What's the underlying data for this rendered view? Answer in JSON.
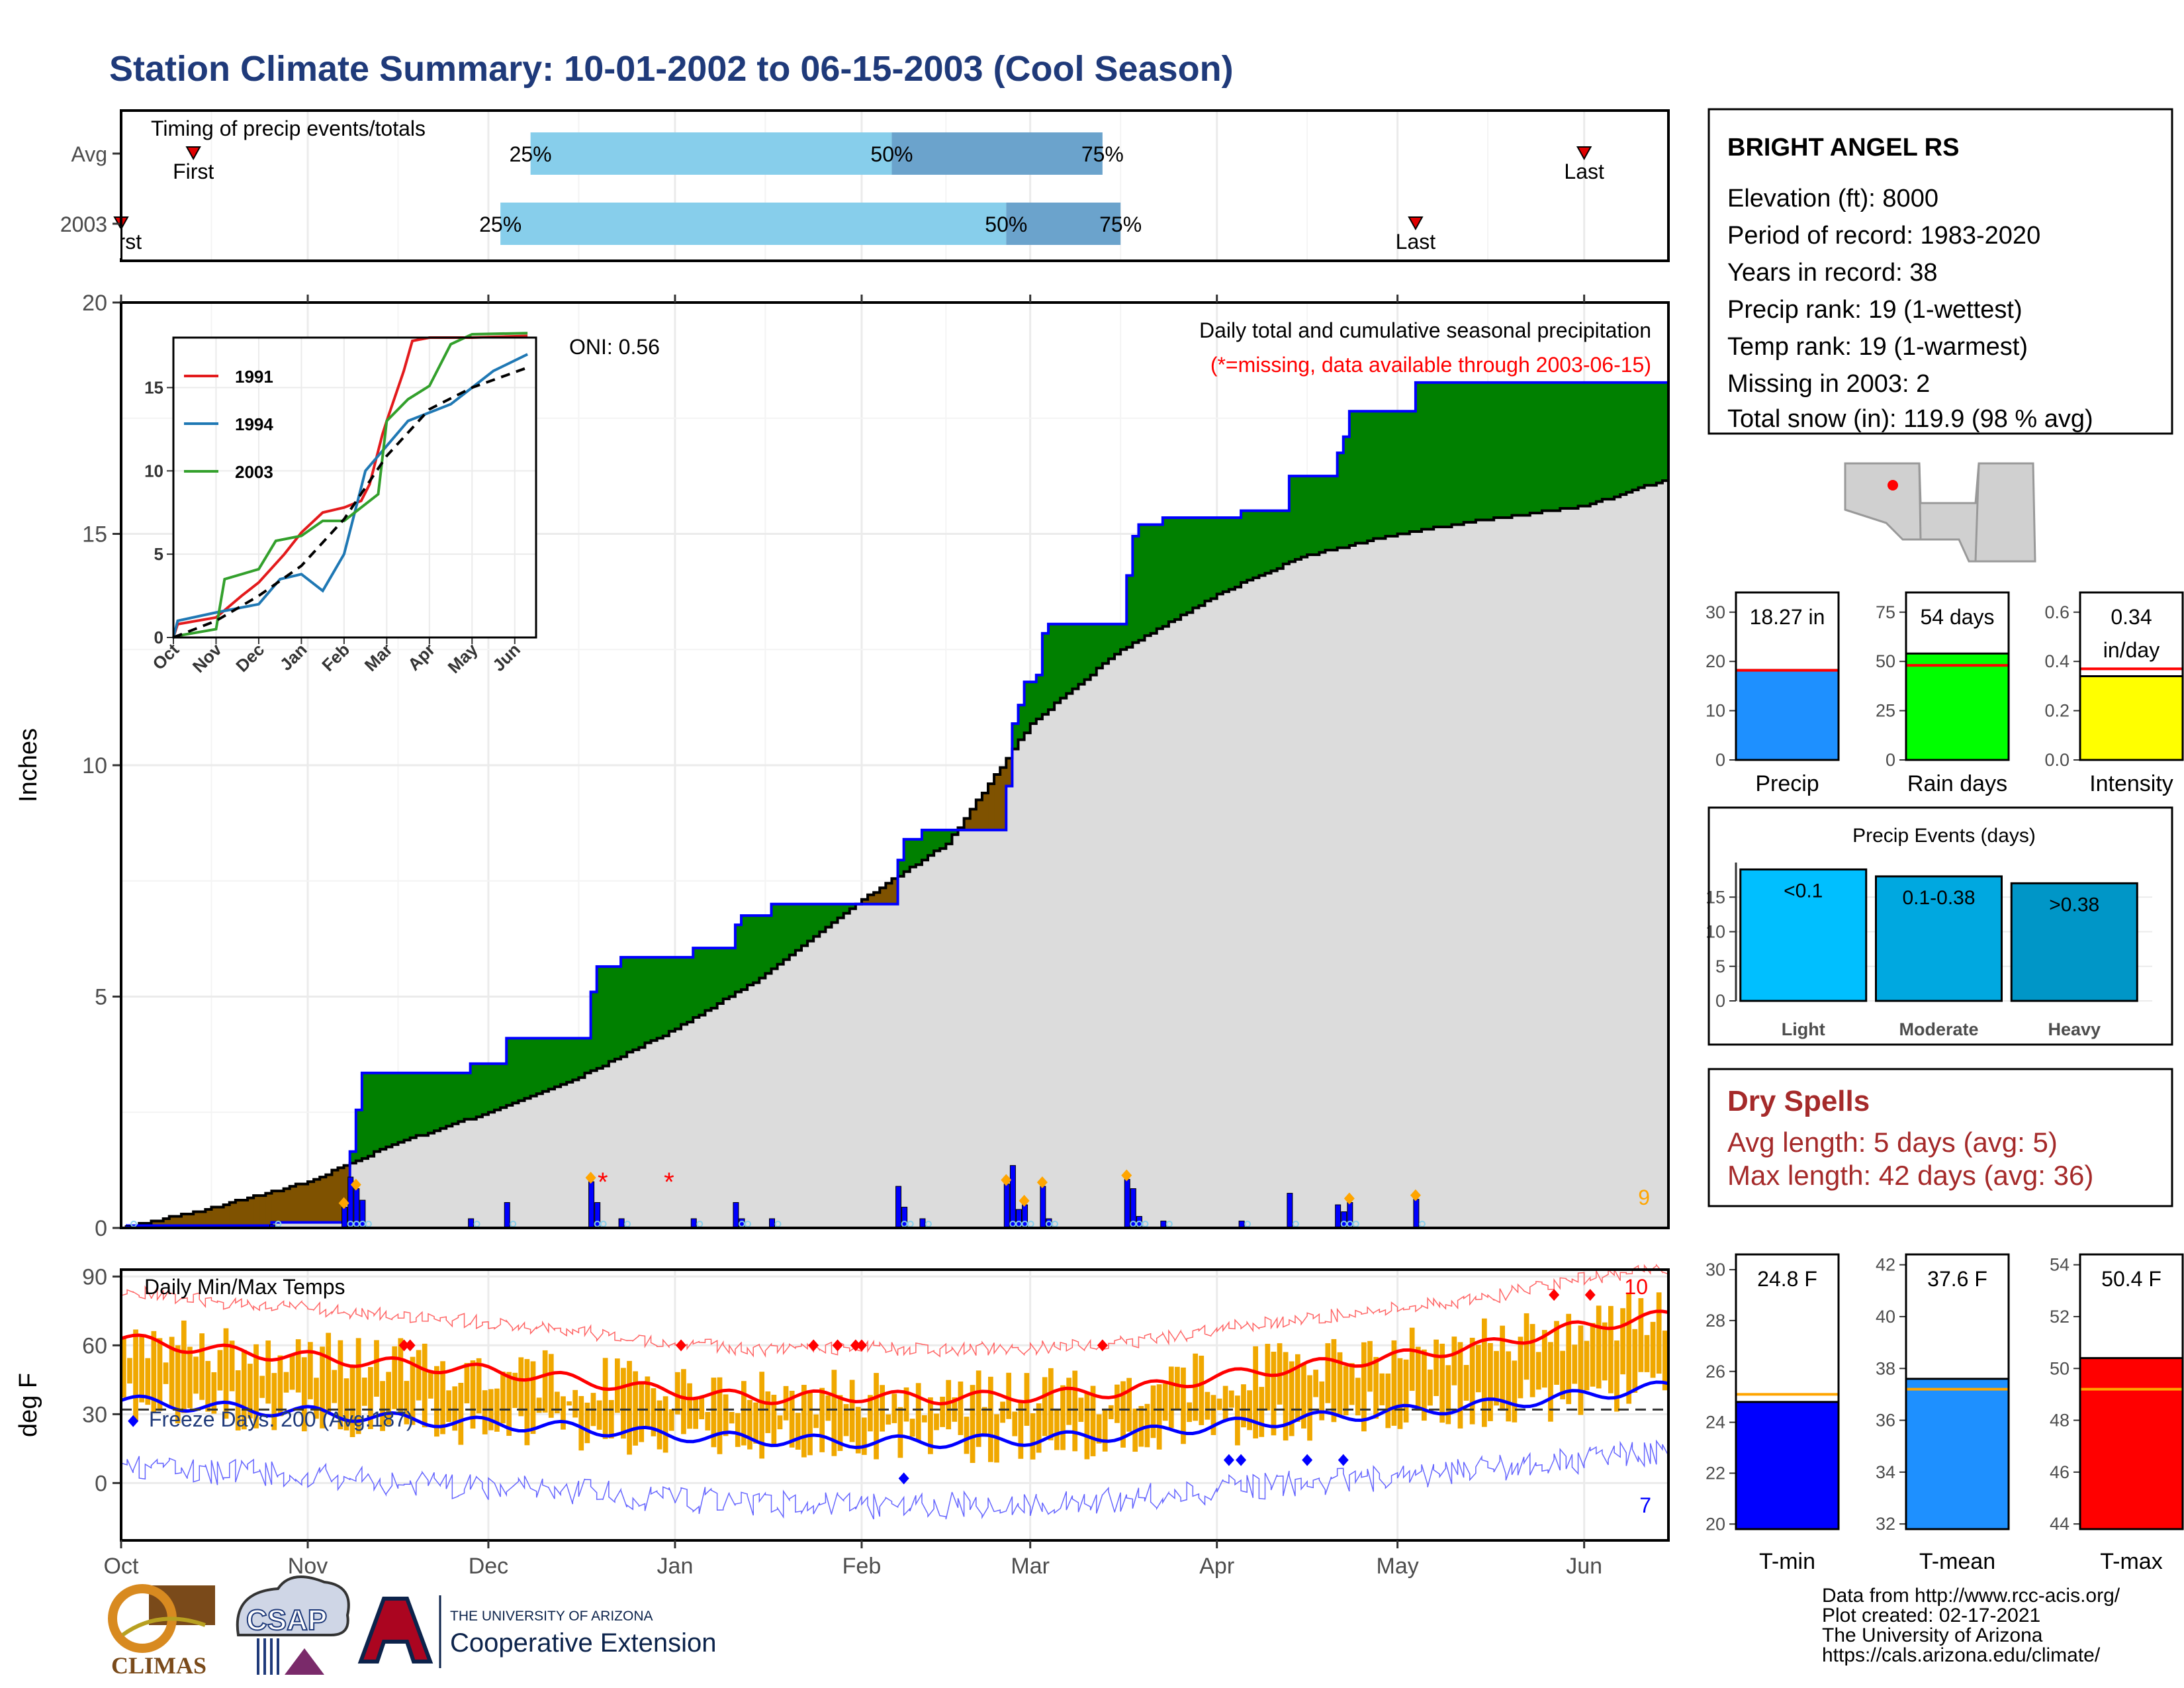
{
  "title": "Station Climate Summary: 10-01-2002 to 06-15-2003 (Cool Season)",
  "timing": {
    "label": "Timing of precip events/totals",
    "rows": [
      {
        "name": "Avg",
        "first_label": "First",
        "last_label": "Last",
        "first": "2002-10-13",
        "last": "2003-06-01",
        "p25": "2002-12-08",
        "p50": "2003-02-06",
        "p75": "2003-03-13"
      },
      {
        "name": "2003",
        "first_label": "First",
        "last_label": "Last",
        "first": "2002-10-01",
        "last": "2003-05-04",
        "p25": "2002-12-03",
        "p50": "2003-02-25",
        "p75": "2003-03-16"
      }
    ],
    "p25_label": "25%",
    "p50_label": "50%",
    "p75_label": "75%"
  },
  "main_chart": {
    "ylabel": "Inches",
    "yticks": [
      0,
      5,
      10,
      15,
      20
    ],
    "annotation_title": "Daily total and cumulative seasonal precipitation",
    "annotation_missing": "(*=missing, data available through 2003-06-15)",
    "oni_label": "ONI: 0.56",
    "right_count": "9"
  },
  "chart_data": [
    {
      "type": "area",
      "name": "cumulative-precip",
      "x_start": "2002-10-01",
      "x_end": "2003-06-15",
      "ylim": [
        0,
        20
      ],
      "series": [
        {
          "name": "2003",
          "points": [
            [
              "2002-10-01",
              0
            ],
            [
              "2002-10-02",
              0.05
            ],
            [
              "2002-10-25",
              0.05
            ],
            [
              "2002-10-26",
              0.12
            ],
            [
              "2002-11-06",
              0.12
            ],
            [
              "2002-11-07",
              0.55
            ],
            [
              "2002-11-08",
              1.65
            ],
            [
              "2002-11-09",
              2.55
            ],
            [
              "2002-11-10",
              3.35
            ],
            [
              "2002-11-27",
              3.35
            ],
            [
              "2002-11-28",
              3.55
            ],
            [
              "2002-12-03",
              3.55
            ],
            [
              "2002-12-04",
              4.1
            ],
            [
              "2002-12-17",
              4.1
            ],
            [
              "2002-12-18",
              5.1
            ],
            [
              "2002-12-19",
              5.65
            ],
            [
              "2002-12-22",
              5.65
            ],
            [
              "2002-12-23",
              5.85
            ],
            [
              "2003-01-03",
              5.85
            ],
            [
              "2003-01-04",
              6.05
            ],
            [
              "2003-01-10",
              6.05
            ],
            [
              "2003-01-11",
              6.55
            ],
            [
              "2003-01-12",
              6.75
            ],
            [
              "2003-01-16",
              6.75
            ],
            [
              "2003-01-17",
              7.0
            ],
            [
              "2003-02-06",
              7.0
            ],
            [
              "2003-02-07",
              7.95
            ],
            [
              "2003-02-08",
              8.4
            ],
            [
              "2003-02-11",
              8.6
            ],
            [
              "2003-02-24",
              8.6
            ],
            [
              "2003-02-25",
              9.55
            ],
            [
              "2003-02-26",
              10.9
            ],
            [
              "2003-02-27",
              11.3
            ],
            [
              "2003-02-28",
              11.8
            ],
            [
              "2003-03-02",
              11.95
            ],
            [
              "2003-03-03",
              12.85
            ],
            [
              "2003-03-04",
              13.05
            ],
            [
              "2003-03-05",
              13.05
            ],
            [
              "2003-03-16",
              13.05
            ],
            [
              "2003-03-17",
              14.1
            ],
            [
              "2003-03-18",
              14.95
            ],
            [
              "2003-03-19",
              15.2
            ],
            [
              "2003-03-23",
              15.35
            ],
            [
              "2003-04-04",
              15.35
            ],
            [
              "2003-04-05",
              15.5
            ],
            [
              "2003-04-12",
              15.5
            ],
            [
              "2003-04-13",
              16.25
            ],
            [
              "2003-04-20",
              16.25
            ],
            [
              "2003-04-21",
              16.75
            ],
            [
              "2003-04-22",
              17.1
            ],
            [
              "2003-04-23",
              17.65
            ],
            [
              "2003-05-03",
              17.65
            ],
            [
              "2003-05-04",
              18.27
            ],
            [
              "2003-06-15",
              18.27
            ]
          ]
        },
        {
          "name": "Avg",
          "points": [
            [
              "2002-10-01",
              0
            ],
            [
              "2002-10-15",
              0.4
            ],
            [
              "2002-11-01",
              1.0
            ],
            [
              "2002-11-15",
              1.8
            ],
            [
              "2002-12-01",
              2.5
            ],
            [
              "2002-12-15",
              3.2
            ],
            [
              "2003-01-01",
              4.3
            ],
            [
              "2003-01-15",
              5.4
            ],
            [
              "2003-02-01",
              7.1
            ],
            [
              "2003-02-15",
              8.3
            ],
            [
              "2003-03-01",
              10.9
            ],
            [
              "2003-03-15",
              12.4
            ],
            [
              "2003-04-01",
              13.7
            ],
            [
              "2003-04-15",
              14.5
            ],
            [
              "2003-05-01",
              15.0
            ],
            [
              "2003-05-15",
              15.3
            ],
            [
              "2003-06-01",
              15.6
            ],
            [
              "2003-06-15",
              16.2
            ]
          ]
        }
      ],
      "daily_precip": [
        [
          "2002-10-02",
          0.05
        ],
        [
          "2002-10-26",
          0.07
        ],
        [
          "2002-11-07",
          0.45
        ],
        [
          "2002-11-08",
          1.1
        ],
        [
          "2002-11-09",
          0.85
        ],
        [
          "2002-11-10",
          0.6
        ],
        [
          "2002-11-28",
          0.2
        ],
        [
          "2002-12-04",
          0.55
        ],
        [
          "2002-12-18",
          1.0
        ],
        [
          "2002-12-19",
          0.55
        ],
        [
          "2002-12-23",
          0.2
        ],
        [
          "2003-01-04",
          0.2
        ],
        [
          "2003-01-11",
          0.55
        ],
        [
          "2003-01-12",
          0.2
        ],
        [
          "2003-01-17",
          0.2
        ],
        [
          "2003-02-07",
          0.9
        ],
        [
          "2003-02-08",
          0.45
        ],
        [
          "2003-02-11",
          0.2
        ],
        [
          "2003-02-25",
          0.95
        ],
        [
          "2003-02-26",
          1.35
        ],
        [
          "2003-02-27",
          0.4
        ],
        [
          "2003-02-28",
          0.5
        ],
        [
          "2003-03-03",
          0.9
        ],
        [
          "2003-03-04",
          0.2
        ],
        [
          "2003-03-17",
          1.05
        ],
        [
          "2003-03-18",
          0.85
        ],
        [
          "2003-03-19",
          0.25
        ],
        [
          "2003-03-23",
          0.15
        ],
        [
          "2003-04-05",
          0.15
        ],
        [
          "2003-04-13",
          0.75
        ],
        [
          "2003-04-21",
          0.5
        ],
        [
          "2003-04-22",
          0.35
        ],
        [
          "2003-04-23",
          0.55
        ],
        [
          "2003-05-04",
          0.62
        ]
      ],
      "missing_days": [
        "2002-12-20",
        "2002-12-31"
      ]
    },
    {
      "type": "line",
      "name": "inset-cumulative-historic",
      "xlim": [
        "Oct",
        "Jun"
      ],
      "x_ticks": [
        "Oct",
        "Nov",
        "Dec",
        "Jan",
        "Feb",
        "Mar",
        "Apr",
        "May",
        "Jun"
      ],
      "y_ticks": [
        0,
        5,
        10,
        15
      ],
      "ylim": [
        0,
        18
      ],
      "series": [
        {
          "name": "1991",
          "color": "#e31a1c",
          "x": [
            0,
            0.1,
            1.0,
            1.6,
            2.0,
            2.6,
            3.0,
            3.5,
            4.0,
            4.4,
            4.6,
            4.9,
            5.0,
            5.4,
            5.6,
            6.0,
            7.0,
            8.3
          ],
          "y": [
            0,
            0.8,
            1.2,
            2.5,
            3.3,
            5.0,
            6.3,
            7.5,
            7.8,
            8.2,
            9.2,
            12.2,
            13.0,
            16.0,
            17.8,
            18.0,
            18.0,
            18.1
          ]
        },
        {
          "name": "1994",
          "color": "#1f78b4",
          "x": [
            0,
            0.1,
            1.0,
            2.0,
            2.5,
            3.0,
            3.5,
            4.0,
            4.5,
            5.0,
            5.5,
            6.0,
            6.5,
            7.0,
            7.5,
            8.3
          ],
          "y": [
            0,
            1.0,
            1.5,
            2.0,
            3.5,
            3.8,
            2.8,
            5.0,
            10.0,
            11.5,
            13.0,
            13.5,
            14.0,
            15.0,
            16.0,
            17.0
          ]
        },
        {
          "name": "2003",
          "color": "#33a02c",
          "x": [
            0,
            0.1,
            1.0,
            1.2,
            2.0,
            2.4,
            3.0,
            3.5,
            4.0,
            4.8,
            5.0,
            5.5,
            6.0,
            6.5,
            7.0,
            8.3
          ],
          "y": [
            0,
            0.1,
            0.5,
            3.5,
            4.1,
            5.8,
            6.1,
            7.0,
            7.0,
            8.6,
            13.0,
            14.3,
            15.1,
            17.6,
            18.2,
            18.27
          ]
        },
        {
          "name": "Avg",
          "color": "#000000",
          "x": [
            0,
            1,
            2,
            3,
            4,
            5,
            6,
            7,
            8.3
          ],
          "y": [
            0,
            1.0,
            2.5,
            4.3,
            7.1,
            10.9,
            13.7,
            15.0,
            16.2
          ]
        }
      ]
    },
    {
      "type": "line",
      "name": "daily-temps",
      "label": "Daily Min/Max Temps",
      "yticks": [
        0,
        30,
        60,
        90
      ],
      "ylim": [
        -25,
        93
      ],
      "freeze_line": 32,
      "freeze_label": "Freeze Days: 200 (Avg:187)",
      "count_high": "10",
      "count_low": "7",
      "series": [
        {
          "name": "avg-max",
          "color": "#ff0000",
          "x": [
            0,
            0.5,
            1,
            1.5,
            2,
            2.5,
            3,
            3.5,
            4,
            4.5,
            5,
            5.5,
            6,
            6.5,
            7,
            7.5,
            8,
            8.5
          ],
          "y": [
            63,
            58,
            55,
            52,
            49,
            45,
            40,
            37,
            38,
            37,
            38,
            40,
            46,
            51,
            55,
            60,
            68,
            73
          ]
        },
        {
          "name": "avg-min",
          "color": "#0000ff",
          "x": [
            0,
            0.5,
            1,
            1.5,
            2,
            2.5,
            3,
            3.5,
            4,
            4.5,
            5,
            5.5,
            6,
            6.5,
            7,
            7.5,
            8,
            8.5
          ],
          "y": [
            36,
            33,
            31,
            28,
            26,
            24,
            21,
            19,
            18,
            18,
            19,
            21,
            25,
            28,
            31,
            34,
            38,
            42
          ]
        }
      ]
    },
    {
      "type": "bar",
      "name": "precip-summary",
      "categories": [
        "Precip"
      ],
      "values": [
        18.27
      ],
      "avg": 18.2,
      "ylim": [
        0,
        34
      ],
      "yticks": [
        0,
        10,
        20,
        30
      ],
      "value_label": "18.27 in",
      "color": "#1e90ff"
    },
    {
      "type": "bar",
      "name": "raindays-summary",
      "categories": [
        "Rain days"
      ],
      "values": [
        54
      ],
      "avg": 48,
      "ylim": [
        0,
        85
      ],
      "yticks": [
        0,
        25,
        50,
        75
      ],
      "value_label": "54 days",
      "color": "#00ff00"
    },
    {
      "type": "bar",
      "name": "intensity-summary",
      "categories": [
        "Intensity"
      ],
      "values": [
        0.34
      ],
      "avg": 0.37,
      "ylim": [
        0,
        0.68
      ],
      "yticks": [
        0.0,
        0.2,
        0.4,
        0.6
      ],
      "value_label": "0.34",
      "value_label2": "in/day",
      "color": "#ffff00"
    },
    {
      "type": "bar",
      "name": "precip-events",
      "title": "Precip Events (days)",
      "categories": [
        "Light",
        "Moderate",
        "Heavy"
      ],
      "values": [
        19,
        18,
        17
      ],
      "bar_labels": [
        "<0.1",
        "0.1-0.38",
        ">0.38"
      ],
      "ylim": [
        0,
        20
      ],
      "yticks": [
        0,
        5,
        10,
        15
      ],
      "colors": [
        "#00bfff",
        "#00a8e0",
        "#0096c7"
      ]
    },
    {
      "type": "bar",
      "name": "tmin-summary",
      "categories": [
        "T-min"
      ],
      "values": [
        24.8
      ],
      "avg": 25.1,
      "ylim": [
        19.8,
        30.6
      ],
      "yticks": [
        20,
        22,
        24,
        26,
        28,
        30
      ],
      "value_label": "24.8 F",
      "color": "#0000ff"
    },
    {
      "type": "bar",
      "name": "tmean-summary",
      "categories": [
        "T-mean"
      ],
      "values": [
        37.6
      ],
      "avg": 37.2,
      "ylim": [
        31.8,
        42.4
      ],
      "yticks": [
        32,
        34,
        36,
        38,
        40,
        42
      ],
      "value_label": "37.6 F",
      "color": "#1e90ff"
    },
    {
      "type": "bar",
      "name": "tmax-summary",
      "categories": [
        "T-max"
      ],
      "values": [
        50.4
      ],
      "avg": 49.2,
      "ylim": [
        43.8,
        54.4
      ],
      "yticks": [
        44,
        46,
        48,
        50,
        52,
        54
      ],
      "value_label": "50.4 F",
      "color": "#ff0000"
    }
  ],
  "month_labels": [
    "Oct",
    "Nov",
    "Dec",
    "Jan",
    "Feb",
    "Mar",
    "Apr",
    "May",
    "Jun"
  ],
  "temp_ylabel": "deg F",
  "station": {
    "name": "BRIGHT ANGEL RS",
    "lines": [
      "Elevation (ft): 8000",
      "Period of record: 1983-2020",
      "Years in record: 38",
      "Precip rank: 19 (1-wettest)",
      "Temp rank: 19 (1-warmest)",
      "Missing in 2003: 2",
      "Total snow (in): 119.9 (98 % avg)"
    ]
  },
  "dry_spells": {
    "title": "Dry Spells",
    "avg_line": "Avg length: 5 days (avg: 5)",
    "max_line": "Max length: 42 days (avg: 36)"
  },
  "credits": [
    "Data from http://www.rcc-acis.org/",
    "Plot created: 02-17-2021",
    "The University of Arizona",
    "https://cals.arizona.edu/climate/"
  ],
  "logos": {
    "climas": "CLIMAS",
    "csap": "CSAP",
    "ua_top": "THE UNIVERSITY OF ARIZONA",
    "ua_bottom": "Cooperative Extension"
  },
  "colors": {
    "title": "#1f3a7a",
    "above_avg": "#008000",
    "below_avg": "#7f5200",
    "avg_fill": "#dcdcdc",
    "precip_bar": "#0000ff",
    "tmp_bar": "#f0a800",
    "light_blue": "#87ceeb",
    "mid_blue": "#6ba3cc",
    "dry_red": "#a52a2a"
  }
}
